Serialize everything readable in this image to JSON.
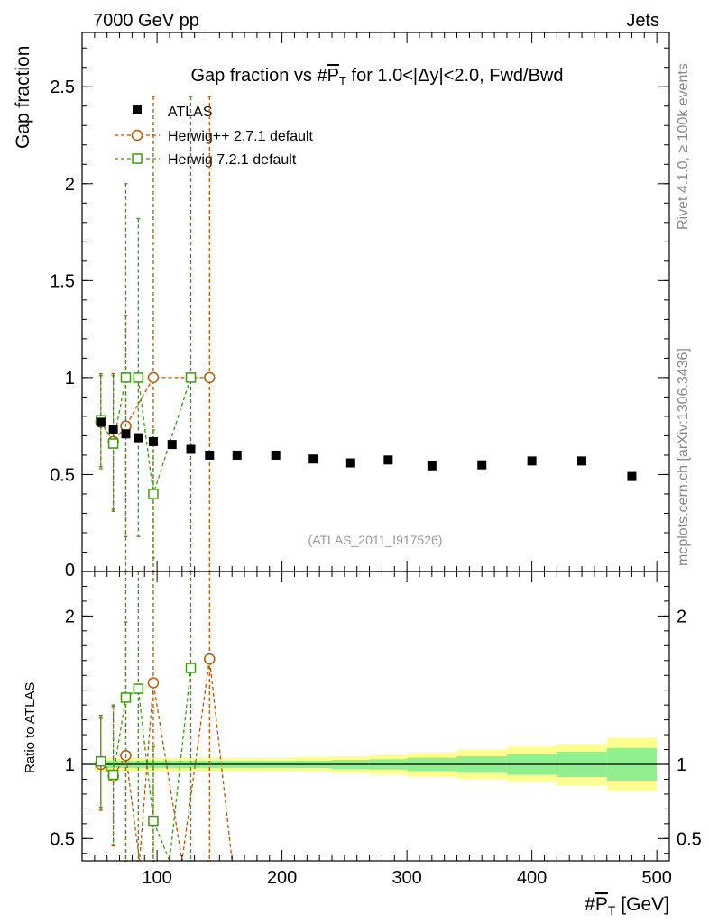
{
  "header": {
    "left": "7000 GeV pp",
    "right": "Jets"
  },
  "side_labels": {
    "top": "Rivet 4.1.0, ≥ 100k events",
    "bottom": "mcplots.cern.ch [arXiv:1306.3436]"
  },
  "analysis_id": "(ATLAS_2011_I917526)",
  "colors": {
    "data": "#000000",
    "herwigpp": "#b35900",
    "herwig7": "#3c9a0f",
    "band_stat": "#90f090",
    "band_total": "#ffff90"
  },
  "chart_data": [
    {
      "type": "scatter",
      "title": "Gap fraction vs #P̅T for 1.0<|Δy|<2.0, Fwd/Bwd",
      "title_parts": [
        "Gap fraction vs #",
        "P",
        "T",
        " for 1.0<|Δy|<2.0, Fwd/Bwd"
      ],
      "ylabel": "Gap fraction",
      "xlim": [
        40,
        510
      ],
      "ylim": [
        0,
        2.78
      ],
      "yticks": [
        0.5,
        1,
        1.5,
        2,
        2.5
      ],
      "ytick_labels": [
        "0.5",
        "1",
        "1.5",
        "2",
        "2.5"
      ],
      "legend": [
        {
          "name": "ATLAS",
          "marker": "filled-square"
        },
        {
          "name": "Herwig++ 2.7.1 default",
          "marker": "open-circle"
        },
        {
          "name": "Herwig 7.2.1 default",
          "marker": "open-square"
        }
      ],
      "series": [
        {
          "name": "ATLAS",
          "x": [
            55,
            65,
            75,
            85,
            97,
            112,
            127,
            142,
            164,
            195,
            225,
            255,
            285,
            320,
            360,
            400,
            440,
            480
          ],
          "y": [
            0.77,
            0.73,
            0.71,
            0.69,
            0.67,
            0.655,
            0.63,
            0.6,
            0.6,
            0.6,
            0.58,
            0.56,
            0.575,
            0.545,
            0.55,
            0.57,
            0.57,
            0.49
          ]
        },
        {
          "name": "Herwig++ 2.7.1 default",
          "x": [
            55,
            65,
            75,
            97,
            142
          ],
          "y": [
            0.77,
            0.67,
            0.75,
            1.0,
            1.0
          ],
          "err_low": [
            0.24,
            0.35,
            0.57,
            1.0,
            1.0
          ],
          "err_high": [
            0.24,
            0.35,
            0.57,
            1.45,
            1.45
          ]
        },
        {
          "name": "Herwig 7.2.1 default",
          "x": [
            55,
            65,
            75,
            85,
            97,
            127
          ],
          "y": [
            0.78,
            0.66,
            1.0,
            1.0,
            0.4,
            1.0
          ],
          "err_low": [
            0.24,
            0.35,
            1.0,
            0.82,
            0.33,
            1.0
          ],
          "err_high": [
            0.24,
            0.35,
            1.0,
            0.82,
            0.33,
            1.45
          ]
        }
      ]
    },
    {
      "type": "line",
      "ylabel": "Ratio to ATLAS",
      "xlabel": "#P̅T [GeV]",
      "xlabel_parts": [
        "#",
        "P",
        "T",
        " [GeV]"
      ],
      "xlim": [
        40,
        510
      ],
      "ylim": [
        0.35,
        2.3
      ],
      "xticks": [
        100,
        200,
        300,
        400,
        500
      ],
      "xtick_labels": [
        "100",
        "200",
        "300",
        "400",
        "500"
      ],
      "yticks": [
        0.5,
        1,
        2
      ],
      "ytick_labels": [
        "0.5",
        "1",
        "2"
      ],
      "bands": {
        "edges": [
          50,
          60,
          70,
          80,
          90,
          105,
          120,
          135,
          150,
          180,
          210,
          240,
          270,
          300,
          340,
          380,
          420,
          460,
          500
        ],
        "stat": [
          0.025,
          0.025,
          0.025,
          0.025,
          0.025,
          0.025,
          0.025,
          0.025,
          0.025,
          0.025,
          0.025,
          0.03,
          0.035,
          0.045,
          0.055,
          0.07,
          0.085,
          0.11
        ],
        "total": [
          0.045,
          0.045,
          0.045,
          0.045,
          0.045,
          0.045,
          0.045,
          0.045,
          0.045,
          0.045,
          0.05,
          0.055,
          0.065,
          0.08,
          0.1,
          0.12,
          0.14,
          0.18
        ]
      },
      "series": [
        {
          "name": "Herwig++ 2.7.1 default",
          "x": [
            55,
            65,
            75,
            97,
            142
          ],
          "y": [
            1.0,
            0.92,
            1.06,
            1.55,
            1.71
          ],
          "err_low": [
            0.31,
            0.47,
            0.9,
            1.5,
            1.6
          ],
          "err_high": [
            0.31,
            0.47,
            0.9,
            1.5,
            1.6
          ],
          "dips": [
            [
              86,
              0.3
            ],
            [
              120,
              0.3
            ],
            [
              160,
              0.3
            ]
          ]
        },
        {
          "name": "Herwig 7.2.1 default",
          "x": [
            55,
            65,
            75,
            85,
            97,
            127
          ],
          "y": [
            1.02,
            0.93,
            1.45,
            1.51,
            0.62,
            1.65
          ],
          "err_low": [
            0.31,
            0.47,
            1.4,
            1.3,
            0.5,
            1.6
          ],
          "err_high": [
            0.31,
            0.47,
            1.4,
            1.3,
            0.5,
            1.6
          ],
          "dips": [
            [
              110,
              0.3
            ]
          ]
        }
      ]
    }
  ]
}
